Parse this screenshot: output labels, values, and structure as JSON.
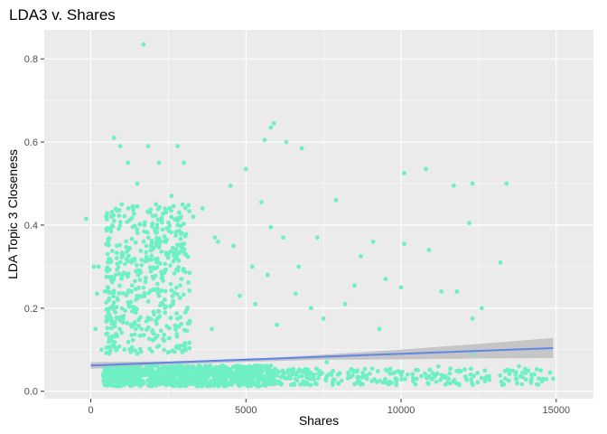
{
  "chart_data": {
    "type": "scatter",
    "title": "LDA3 v. Shares",
    "xlabel": "Shares",
    "ylabel": "LDA Topic 3 Closeness",
    "xlim": [
      -1500,
      16200
    ],
    "ylim": [
      -0.018,
      0.87
    ],
    "x_ticks": [
      0,
      5000,
      10000,
      15000
    ],
    "x_tick_labels": [
      "0",
      "5000",
      "10000",
      "15000"
    ],
    "y_ticks": [
      0.0,
      0.2,
      0.4,
      0.6,
      0.8
    ],
    "y_tick_labels": [
      "0.0",
      "0.2",
      "0.4",
      "0.6",
      "0.8"
    ],
    "grid": true,
    "legend": "none",
    "colors": {
      "panel": "#ebebeb",
      "grid": "#ffffff",
      "points": "#6ef0c4",
      "trend": "#3366ff",
      "band": "#bdbdbd"
    },
    "points": [
      [
        1700,
        0.835
      ],
      [
        5900,
        0.645
      ],
      [
        5800,
        0.635
      ],
      [
        6300,
        0.6
      ],
      [
        5600,
        0.605
      ],
      [
        6800,
        0.585
      ],
      [
        750,
        0.61
      ],
      [
        950,
        0.59
      ],
      [
        1850,
        0.59
      ],
      [
        2800,
        0.59
      ],
      [
        5000,
        0.535
      ],
      [
        10100,
        0.525
      ],
      [
        10800,
        0.535
      ],
      [
        11700,
        0.495
      ],
      [
        13400,
        0.5
      ],
      [
        12300,
        0.5
      ],
      [
        12200,
        0.405
      ],
      [
        4500,
        0.495
      ],
      [
        5500,
        0.455
      ],
      [
        7900,
        0.46
      ],
      [
        5800,
        0.395
      ],
      [
        6200,
        0.37
      ],
      [
        6700,
        0.3
      ],
      [
        8700,
        0.325
      ],
      [
        9100,
        0.36
      ],
      [
        10100,
        0.355
      ],
      [
        10900,
        0.34
      ],
      [
        11800,
        0.24
      ],
      [
        12600,
        0.2
      ],
      [
        13200,
        0.31
      ],
      [
        12300,
        0.175
      ],
      [
        8200,
        0.21
      ],
      [
        9500,
        0.27
      ],
      [
        7100,
        0.2
      ],
      [
        7500,
        0.175
      ],
      [
        6600,
        0.235
      ],
      [
        9300,
        0.15
      ],
      [
        11300,
        0.24
      ],
      [
        10000,
        0.25
      ],
      [
        4000,
        0.37
      ],
      [
        4600,
        0.35
      ],
      [
        3300,
        0.42
      ],
      [
        2600,
        0.47
      ],
      [
        3600,
        0.44
      ],
      [
        4100,
        0.36
      ],
      [
        5200,
        0.3
      ],
      [
        5700,
        0.28
      ],
      [
        4800,
        0.23
      ],
      [
        5300,
        0.21
      ],
      [
        6000,
        0.16
      ],
      [
        3900,
        0.15
      ],
      [
        2200,
        0.55
      ],
      [
        3000,
        0.55
      ],
      [
        1200,
        0.55
      ],
      [
        1500,
        0.5
      ],
      [
        2100,
        0.45
      ],
      [
        1000,
        0.45
      ],
      [
        -150,
        0.415
      ],
      [
        100,
        0.3
      ],
      [
        200,
        0.235
      ],
      [
        150,
        0.15
      ],
      [
        350,
        0.1
      ],
      [
        450,
        0.24
      ],
      [
        250,
        0.3
      ],
      [
        8500,
        0.255
      ],
      [
        7300,
        0.37
      ],
      [
        9600,
        0.09
      ],
      [
        11200,
        0.06
      ],
      [
        12700,
        0.05
      ],
      [
        13800,
        0.06
      ],
      [
        14500,
        0.05
      ],
      [
        14900,
        0.03
      ],
      [
        14200,
        0.04
      ],
      [
        13500,
        0.05
      ],
      [
        12300,
        0.09
      ],
      [
        11000,
        0.03
      ],
      [
        10500,
        0.03
      ],
      [
        9800,
        0.045
      ],
      [
        8900,
        0.03
      ],
      [
        8300,
        0.045
      ],
      [
        7800,
        0.02
      ],
      [
        7600,
        0.07
      ],
      [
        7200,
        0.04
      ],
      [
        6600,
        0.03
      ]
    ],
    "cluster_band": {
      "x": [
        400,
        5800
      ],
      "y": [
        0.012,
        0.062
      ]
    },
    "trend": {
      "x": [
        0,
        14900
      ],
      "y": [
        0.062,
        0.104
      ]
    },
    "confidence_band": {
      "x": [
        0,
        2500,
        5000,
        7500,
        10000,
        12500,
        14900
      ],
      "lower": [
        0.054,
        0.064,
        0.071,
        0.076,
        0.077,
        0.079,
        0.08
      ],
      "upper": [
        0.07,
        0.072,
        0.077,
        0.088,
        0.1,
        0.114,
        0.128
      ]
    }
  }
}
